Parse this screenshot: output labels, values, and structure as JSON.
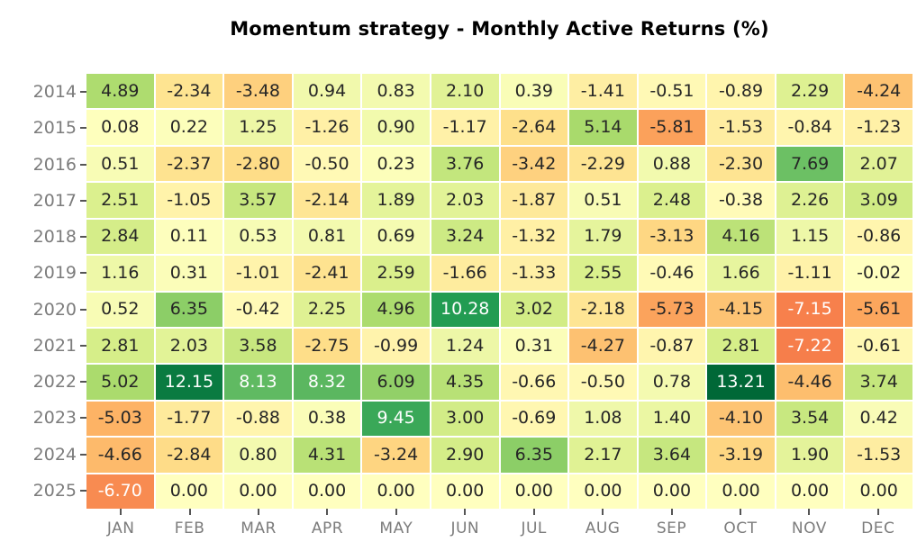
{
  "figure": {
    "title": "Momentum strategy - Monthly Active Returns (%)"
  },
  "chart_data": {
    "type": "heatmap",
    "title": "Momentum strategy - Monthly Active Returns (%)",
    "rows": [
      "2014",
      "2015",
      "2016",
      "2017",
      "2018",
      "2019",
      "2020",
      "2021",
      "2022",
      "2023",
      "2024",
      "2025"
    ],
    "columns": [
      "JAN",
      "FEB",
      "MAR",
      "APR",
      "MAY",
      "JUN",
      "JUL",
      "AUG",
      "SEP",
      "OCT",
      "NOV",
      "DEC"
    ],
    "values": [
      [
        4.89,
        -2.34,
        -3.48,
        0.94,
        0.83,
        2.1,
        0.39,
        -1.41,
        -0.51,
        -0.89,
        2.29,
        -4.24
      ],
      [
        0.08,
        0.22,
        1.25,
        -1.26,
        0.9,
        -1.17,
        -2.64,
        5.14,
        -5.81,
        -1.53,
        -0.84,
        -1.23
      ],
      [
        0.51,
        -2.37,
        -2.8,
        -0.5,
        0.23,
        3.76,
        -3.42,
        -2.29,
        0.88,
        -2.3,
        7.69,
        2.07
      ],
      [
        2.51,
        -1.05,
        3.57,
        -2.14,
        1.89,
        2.03,
        -1.87,
        0.51,
        2.48,
        -0.38,
        2.26,
        3.09
      ],
      [
        2.84,
        0.11,
        0.53,
        0.81,
        0.69,
        3.24,
        -1.32,
        1.79,
        -3.13,
        4.16,
        1.15,
        -0.86
      ],
      [
        1.16,
        0.31,
        -1.01,
        -2.41,
        2.59,
        -1.66,
        -1.33,
        2.55,
        -0.46,
        1.66,
        -1.11,
        -0.02
      ],
      [
        0.52,
        6.35,
        -0.42,
        2.25,
        4.96,
        10.28,
        3.02,
        -2.18,
        -5.73,
        -4.15,
        -7.15,
        -5.61
      ],
      [
        2.81,
        2.03,
        3.58,
        -2.75,
        -0.99,
        1.24,
        0.31,
        -4.27,
        -0.87,
        2.81,
        -7.22,
        -0.61
      ],
      [
        5.02,
        12.15,
        8.13,
        8.32,
        6.09,
        4.35,
        -0.66,
        -0.5,
        0.78,
        13.21,
        -4.46,
        3.74
      ],
      [
        -5.03,
        -1.77,
        -0.88,
        0.38,
        9.45,
        3.0,
        -0.69,
        1.08,
        1.4,
        -4.1,
        3.54,
        0.42
      ],
      [
        -4.66,
        -2.84,
        0.8,
        4.31,
        -3.24,
        2.9,
        6.35,
        2.17,
        3.64,
        -3.19,
        1.9,
        -1.53
      ],
      [
        -6.7,
        0.0,
        0.0,
        0.0,
        0.0,
        0.0,
        0.0,
        0.0,
        0.0,
        0.0,
        0.0,
        0.0
      ]
    ],
    "value_decimals": 2,
    "colormap": {
      "name": "RdYlGn",
      "stops": [
        "#a50026",
        "#d73027",
        "#f46d43",
        "#fdae61",
        "#fee08b",
        "#ffffbf",
        "#d9ef8b",
        "#a6d96a",
        "#66bd63",
        "#1a9850",
        "#006837"
      ],
      "vmin": -13.21,
      "vmax": 13.21
    },
    "annotation_colors": {
      "dark_text": "#262626",
      "light_text": "#ffffff"
    },
    "axis": {
      "label_color": "#7c7c7c",
      "tick_color": "#555555",
      "grid_line_color": "#ffffff"
    },
    "legend": "none"
  }
}
